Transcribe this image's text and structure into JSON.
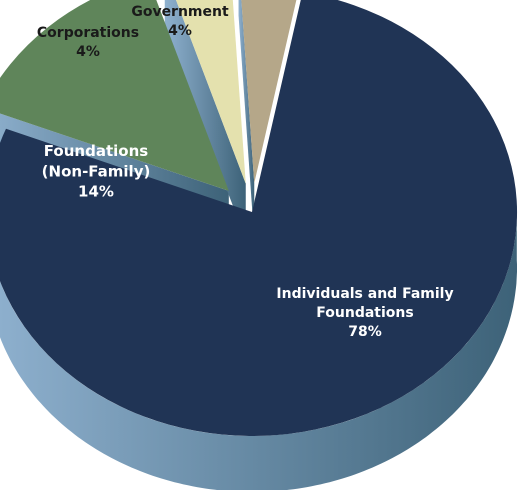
{
  "chart_data": {
    "type": "pie",
    "title": "",
    "slices": [
      {
        "label": "Individuals and Family Foundations",
        "label_lines": [
          "Individuals and Family",
          "Foundations"
        ],
        "value": 78,
        "value_label": "78%",
        "color": "#203455",
        "exploded": false
      },
      {
        "label": "Foundations (Non-Family)",
        "label_lines": [
          "Foundations",
          "(Non-Family)"
        ],
        "value": 14,
        "value_label": "14%",
        "color": "#5f855a",
        "exploded": true
      },
      {
        "label": "Corporations",
        "label_lines": [
          "Corporations"
        ],
        "value": 4,
        "value_label": "4%",
        "color": "#e4e1ae",
        "exploded": true
      },
      {
        "label": "Government",
        "label_lines": [
          "Government"
        ],
        "value": 4,
        "value_label": "4%",
        "color": "#b5a789",
        "exploded": true
      }
    ],
    "legend": "none",
    "labels": "on-chart",
    "style": "3d-exploded"
  },
  "colors": {
    "side_light": "#8fb1cf",
    "side_dark": "#3d6278",
    "label_dark": "#1a1a1a",
    "label_light": "#ffffff"
  }
}
